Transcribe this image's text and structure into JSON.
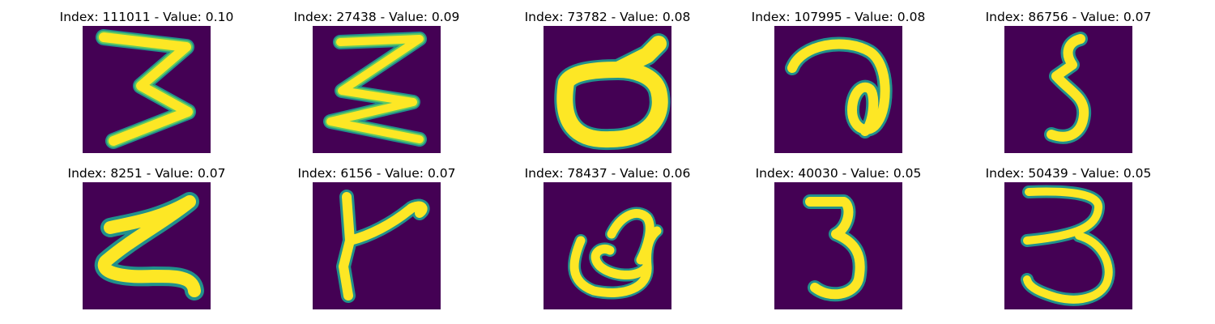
{
  "figure": {
    "background": "#ffffff",
    "colormap": "viridis",
    "panels": [
      {
        "index": "111011",
        "value": "0.10",
        "title": "Index: 111011 - Value: 0.10",
        "glyph": "3"
      },
      {
        "index": "27438",
        "value": "0.09",
        "title": "Index: 27438 - Value: 0.09",
        "glyph": "zigzag-3"
      },
      {
        "index": "73782",
        "value": "0.08",
        "title": "Index: 73782 - Value: 0.08",
        "glyph": "loop"
      },
      {
        "index": "107995",
        "value": "0.08",
        "title": "Index: 107995 - Value: 0.08",
        "glyph": "a"
      },
      {
        "index": "86756",
        "value": "0.07",
        "title": "Index: 86756 - Value: 0.07",
        "glyph": "5"
      },
      {
        "index": "8251",
        "value": "0.07",
        "title": "Index: 8251 - Value: 0.07",
        "glyph": "zigzag"
      },
      {
        "index": "6156",
        "value": "0.07",
        "title": "Index: 6156 - Value: 0.07",
        "glyph": "y"
      },
      {
        "index": "78437",
        "value": "0.06",
        "title": "Index: 78437 - Value: 0.06",
        "glyph": "loop-2"
      },
      {
        "index": "40030",
        "value": "0.05",
        "title": "Index: 40030 - Value: 0.05",
        "glyph": "3"
      },
      {
        "index": "50439",
        "value": "0.05",
        "title": "Index: 50439 - Value: 0.05",
        "glyph": "3-wide"
      }
    ],
    "colors": {
      "background": "#440154",
      "edge": "#21918c",
      "mid": "#5ec962",
      "stroke": "#fde725"
    }
  }
}
